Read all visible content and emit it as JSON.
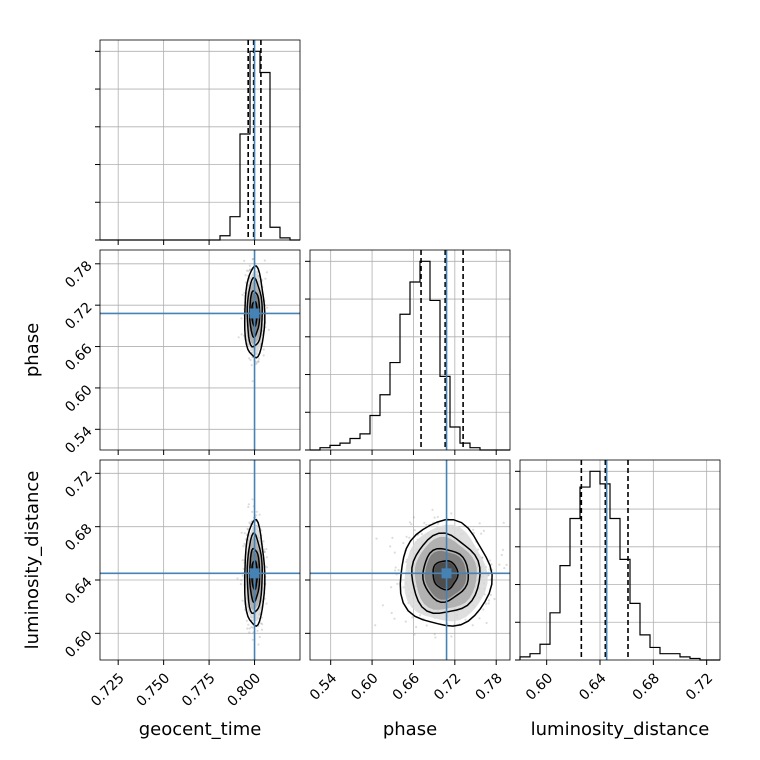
{
  "chart_data": {
    "type": "corner",
    "parameters": [
      "geocent_time",
      "phase",
      "luminosity_distance"
    ],
    "colors": {
      "truth": "#4682b4",
      "hist": "#000000",
      "grid": "#b0b0b0",
      "points": "#808080"
    },
    "truths": {
      "geocent_time": 0.8,
      "phase": 0.708,
      "luminosity_distance": 0.645
    },
    "quantiles": {
      "geocent_time": [
        0.7965,
        0.7995,
        0.8035
      ],
      "phase": [
        0.671,
        0.706,
        0.732
      ],
      "luminosity_distance": [
        0.626,
        0.644,
        0.661
      ]
    },
    "ranges": {
      "geocent_time": [
        0.715,
        0.825
      ],
      "phase": [
        0.51,
        0.8
      ],
      "luminosity_distance": [
        0.58,
        0.73
      ]
    },
    "ticks": {
      "geocent_time": [
        "0.725",
        "0.750",
        "0.775",
        "0.800"
      ],
      "phase": [
        "0.54",
        "0.60",
        "0.66",
        "0.72",
        "0.78"
      ],
      "luminosity_distance": [
        "0.60",
        "0.64",
        "0.68",
        "0.72"
      ]
    },
    "histograms": {
      "geocent_time": {
        "x0": 0.715,
        "x1": 0.825,
        "values": [
          0,
          0,
          0,
          0,
          0,
          0,
          0,
          0,
          0,
          0,
          0,
          0,
          0.02,
          0.11,
          0.5,
          0.89,
          0.79,
          0.06,
          0.01,
          0
        ]
      },
      "phase": {
        "x0": 0.51,
        "x1": 0.8,
        "values": [
          0,
          0.01,
          0.02,
          0.03,
          0.05,
          0.07,
          0.15,
          0.24,
          0.38,
          0.59,
          0.73,
          0.82,
          0.65,
          0.32,
          0.1,
          0.03,
          0.01,
          0,
          0,
          0
        ]
      },
      "luminosity_distance": {
        "x0": 0.58,
        "x1": 0.73,
        "values": [
          0.01,
          0.02,
          0.05,
          0.15,
          0.3,
          0.45,
          0.55,
          0.6,
          0.56,
          0.45,
          0.32,
          0.18,
          0.08,
          0.04,
          0.02,
          0.02,
          0.01,
          0.005,
          0,
          0
        ]
      }
    },
    "scatter_2d": [
      {
        "x": "geocent_time",
        "y": "phase",
        "center": [
          0.8,
          0.708
        ],
        "sigma": [
          0.0025,
          0.03
        ]
      },
      {
        "x": "geocent_time",
        "y": "luminosity_distance",
        "center": [
          0.8,
          0.644
        ],
        "sigma": [
          0.0025,
          0.018
        ]
      },
      {
        "x": "phase",
        "y": "luminosity_distance",
        "center": [
          0.706,
          0.644
        ],
        "sigma": [
          0.03,
          0.018
        ]
      }
    ],
    "grid": true
  }
}
